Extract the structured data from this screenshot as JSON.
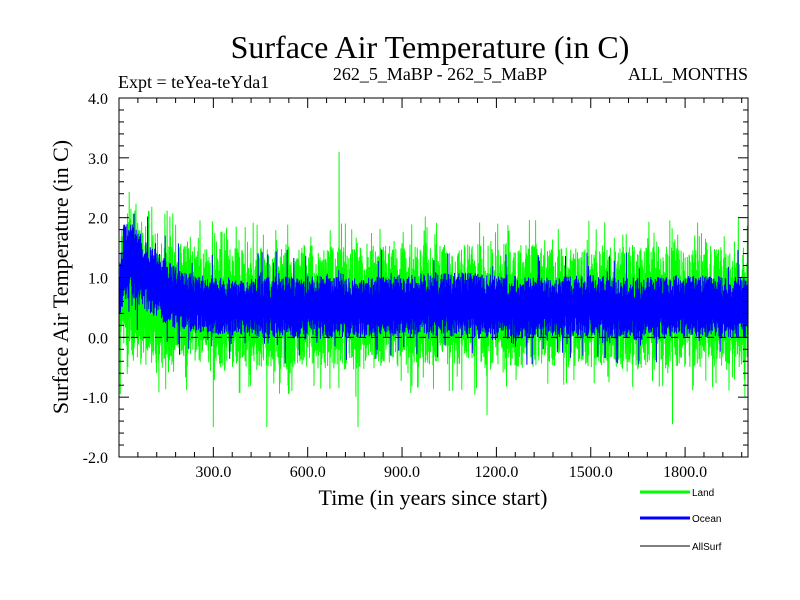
{
  "chart_data": {
    "type": "line",
    "title": "Surface Air Temperature (in C)",
    "subtitle_left": "Expt = teYea-teYda1",
    "subtitle_center": "262_5_MaBP - 262_5_MaBP",
    "subtitle_right": "ALL_MONTHS",
    "xlabel": "Time (in years since start)",
    "ylabel": "Surface Air Temperature (in C)",
    "xlim": [
      0,
      2000
    ],
    "ylim": [
      -2.0,
      4.0
    ],
    "x_ticks": [
      300,
      600,
      900,
      1200,
      1500,
      1800
    ],
    "x_tick_labels": [
      "300.0",
      "600.0",
      "900.0",
      "1200.0",
      "1500.0",
      "1800.0"
    ],
    "y_ticks": [
      -2.0,
      -1.0,
      0.0,
      1.0,
      2.0,
      3.0,
      4.0
    ],
    "y_tick_labels": [
      "-2.0",
      "-1.0",
      "0.0",
      "1.0",
      "2.0",
      "3.0",
      "4.0"
    ],
    "reference_line": 0.0,
    "series": [
      {
        "name": "Land",
        "color": "#00ff00",
        "envelope_x": [
          0,
          25,
          60,
          100,
          150,
          200,
          300,
          450,
          600,
          750,
          900,
          1050,
          1200,
          1350,
          1500,
          1650,
          1800,
          2000
        ],
        "envelope_upper": [
          1.7,
          2.2,
          2.1,
          1.9,
          1.75,
          1.55,
          1.5,
          1.5,
          1.55,
          1.5,
          1.55,
          1.6,
          1.55,
          1.55,
          1.5,
          1.55,
          1.5,
          1.55
        ],
        "envelope_lower": [
          -0.3,
          -0.5,
          -0.45,
          -0.5,
          -0.45,
          -0.5,
          -0.5,
          -0.55,
          -0.5,
          -0.55,
          -0.5,
          -0.5,
          -0.55,
          -0.5,
          -0.5,
          -0.55,
          -0.5,
          -0.5
        ],
        "extremes": [
          {
            "x": 4,
            "y": -0.95
          },
          {
            "x": 300,
            "y": -1.5
          },
          {
            "x": 470,
            "y": -1.5
          },
          {
            "x": 700,
            "y": 3.1
          },
          {
            "x": 760,
            "y": -1.5
          },
          {
            "x": 1170,
            "y": -1.3
          },
          {
            "x": 1760,
            "y": -1.45
          },
          {
            "x": 1990,
            "y": -1.0
          }
        ]
      },
      {
        "name": "Ocean",
        "color": "#0000ff",
        "envelope_x": [
          0,
          15,
          40,
          70,
          110,
          150,
          200,
          300,
          450,
          600,
          750,
          900,
          1050,
          1200,
          1350,
          1500,
          1650,
          1800,
          2000
        ],
        "envelope_upper": [
          1.0,
          1.9,
          1.95,
          1.7,
          1.5,
          1.3,
          1.1,
          1.0,
          1.0,
          1.05,
          1.0,
          1.05,
          1.1,
          1.05,
          1.0,
          1.05,
          1.0,
          1.05,
          1.0
        ],
        "envelope_lower": [
          0.3,
          0.6,
          0.65,
          0.5,
          0.35,
          0.2,
          0.1,
          0.05,
          0.0,
          -0.05,
          0.0,
          0.0,
          0.0,
          -0.05,
          0.0,
          0.0,
          -0.05,
          0.0,
          0.0
        ]
      },
      {
        "name": "AllSurf",
        "color": "#000000"
      }
    ],
    "legend_position": "bottom-right"
  }
}
